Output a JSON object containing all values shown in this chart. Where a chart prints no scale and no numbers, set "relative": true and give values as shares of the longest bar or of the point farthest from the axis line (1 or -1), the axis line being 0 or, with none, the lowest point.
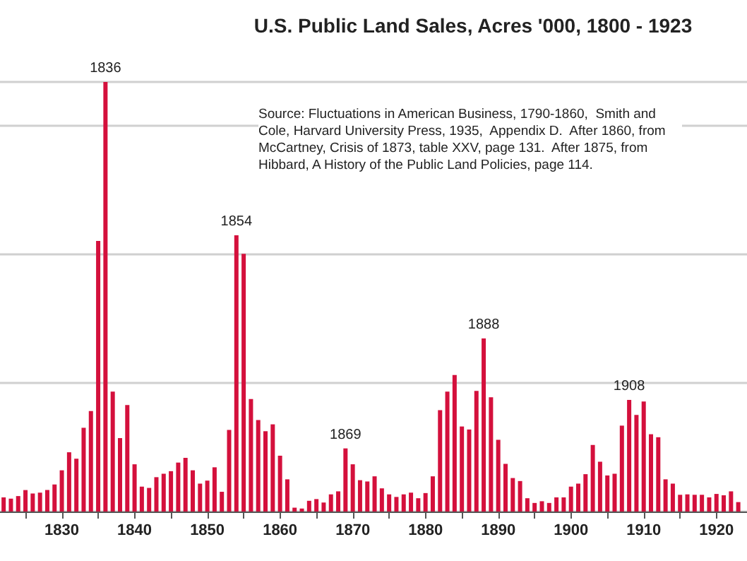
{
  "chart_data": {
    "type": "bar",
    "title": "U.S. Public Land Sales, Acres '000, 1800 - 1923",
    "relative": true,
    "color": "#d4103c",
    "x": [
      1822,
      1823,
      1824,
      1825,
      1826,
      1827,
      1828,
      1829,
      1830,
      1831,
      1832,
      1833,
      1834,
      1835,
      1836,
      1837,
      1838,
      1839,
      1840,
      1841,
      1842,
      1843,
      1844,
      1845,
      1846,
      1847,
      1848,
      1849,
      1850,
      1851,
      1852,
      1853,
      1854,
      1855,
      1856,
      1857,
      1858,
      1859,
      1860,
      1861,
      1862,
      1863,
      1864,
      1865,
      1866,
      1867,
      1868,
      1869,
      1870,
      1871,
      1872,
      1873,
      1874,
      1875,
      1876,
      1877,
      1878,
      1879,
      1880,
      1881,
      1882,
      1883,
      1884,
      1885,
      1886,
      1887,
      1888,
      1889,
      1890,
      1891,
      1892,
      1893,
      1894,
      1895,
      1896,
      1897,
      1898,
      1899,
      1900,
      1901,
      1902,
      1903,
      1904,
      1905,
      1906,
      1907,
      1908,
      1909,
      1910,
      1911,
      1912,
      1913,
      1914,
      1915,
      1916,
      1917,
      1918,
      1919,
      1920,
      1921,
      1922,
      1923
    ],
    "values": [
      0.033,
      0.03,
      0.036,
      0.05,
      0.042,
      0.044,
      0.05,
      0.063,
      0.096,
      0.138,
      0.123,
      0.195,
      0.234,
      0.63,
      1,
      0.279,
      0.171,
      0.248,
      0.11,
      0.058,
      0.055,
      0.08,
      0.088,
      0.094,
      0.114,
      0.125,
      0.096,
      0.065,
      0.072,
      0.103,
      0.046,
      0.19,
      0.643,
      0.6,
      0.262,
      0.213,
      0.187,
      0.203,
      0.13,
      0.075,
      0.009,
      0.007,
      0.025,
      0.029,
      0.021,
      0.04,
      0.047,
      0.147,
      0.11,
      0.073,
      0.07,
      0.082,
      0.054,
      0.04,
      0.034,
      0.04,
      0.044,
      0.031,
      0.043,
      0.082,
      0.236,
      0.279,
      0.318,
      0.198,
      0.191,
      0.281,
      0.403,
      0.266,
      0.167,
      0.111,
      0.078,
      0.071,
      0.031,
      0.02,
      0.024,
      0.02,
      0.033,
      0.033,
      0.058,
      0.065,
      0.087,
      0.155,
      0.116,
      0.084,
      0.088,
      0.2,
      0.26,
      0.225,
      0.256,
      0.18,
      0.173,
      0.075,
      0.065,
      0.039,
      0.04,
      0.039,
      0.039,
      0.033,
      0.041,
      0.038,
      0.047,
      0.022
    ],
    "xlim": [
      1821.5,
      1924.2
    ],
    "xticks": [
      {
        "value": 1825,
        "label": null
      },
      1830,
      {
        "value": 1835,
        "label": null
      },
      1840,
      {
        "value": 1845,
        "label": null
      },
      1850,
      {
        "value": 1855,
        "label": null
      },
      1860,
      {
        "value": 1865,
        "label": null
      },
      1870,
      {
        "value": 1875,
        "label": null
      },
      1880,
      {
        "value": 1885,
        "label": null
      },
      1890,
      {
        "value": 1895,
        "label": null
      },
      1900,
      {
        "value": 1905,
        "label": null
      },
      1910,
      {
        "value": 1915,
        "label": null
      },
      1920
    ],
    "tick_labels": "x",
    "grid": "y",
    "annotations": [
      "Source: Fluctuations in American Business, 1790-1860,  Smith and Cole, Harvard University Press, 1935,  Appendix D.  After 1860, from McCartney, Crisis of 1873, table XXV, page 131.  After 1875, from Hibbard, A History of the Public Land Policies, page 114.",
      {
        "text": "1836",
        "x": 1836,
        "y": 1
      },
      {
        "text": "1854",
        "x": 1854,
        "y": 0.643
      },
      {
        "text": "1869",
        "x": 1869,
        "y": 0.147
      },
      {
        "text": "1888",
        "x": 1888,
        "y": 0.403
      },
      {
        "text": "1908",
        "x": 1908,
        "y": 0.26
      }
    ]
  }
}
